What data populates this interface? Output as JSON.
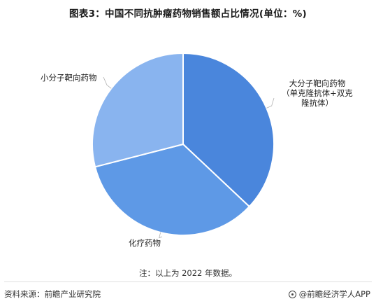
{
  "title": "图表3：中国不同抗肿瘤药物销售额占比情况(单位：%)",
  "chart_data": {
    "type": "pie",
    "title": "图表3：中国不同抗肿瘤药物销售额占比情况(单位：%)",
    "start_angle_deg": 0,
    "direction": "clockwise",
    "slices": [
      {
        "label_lines": [
          "大分子靶向药物",
          "（单克隆抗体+双克",
          "隆抗体）"
        ],
        "value": 37,
        "color": "#4a86dc"
      },
      {
        "label_lines": [
          "化疗药物"
        ],
        "value": 34,
        "color": "#5e99e6"
      },
      {
        "label_lines": [
          "小分子靶向药物"
        ],
        "value": 29,
        "color": "#89b4ef"
      }
    ]
  },
  "note": "注：以上为 2022 年数据。",
  "source": "资料来源：前瞻产业研究院",
  "brand": "@前瞻经济学人APP"
}
